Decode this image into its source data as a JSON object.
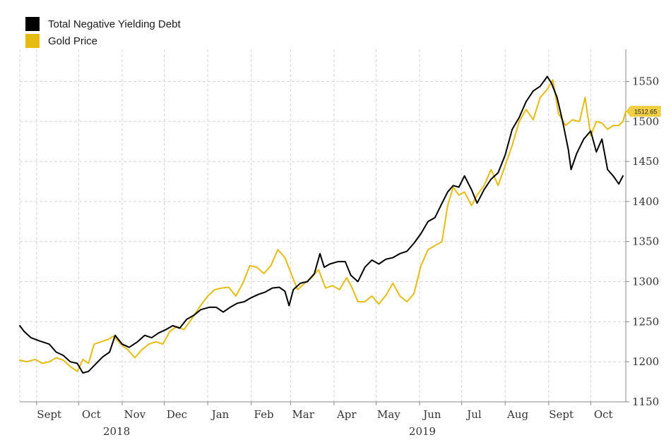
{
  "legend": [
    {
      "label": "Total Negative Yielding Debt",
      "color": "#000000"
    },
    {
      "label": "Gold Price",
      "color": "#e6bc13"
    }
  ],
  "last_price_tag": "1512.65",
  "chart_data": {
    "type": "line",
    "title": "",
    "xlabel": "",
    "ylabel": "",
    "ylim": [
      1150,
      1590
    ],
    "y_ticks": [
      1150,
      1200,
      1250,
      1300,
      1350,
      1400,
      1450,
      1500,
      1550
    ],
    "x_range": [
      "2018-08-20",
      "2019-10-26"
    ],
    "months": [
      {
        "label": "Sept",
        "date": "2018-09-10"
      },
      {
        "label": "Oct",
        "date": "2018-10-10"
      },
      {
        "label": "Nov",
        "date": "2018-11-10"
      },
      {
        "label": "Dec",
        "date": "2018-12-10"
      },
      {
        "label": "Jan",
        "date": "2019-01-10"
      },
      {
        "label": "Feb",
        "date": "2019-02-10"
      },
      {
        "label": "Mar",
        "date": "2019-03-10"
      },
      {
        "label": "Apr",
        "date": "2019-04-10"
      },
      {
        "label": "May",
        "date": "2019-05-10"
      },
      {
        "label": "Jun",
        "date": "2019-06-10"
      },
      {
        "label": "Jul",
        "date": "2019-07-10"
      },
      {
        "label": "Aug",
        "date": "2019-08-10"
      },
      {
        "label": "Sept",
        "date": "2019-09-10"
      },
      {
        "label": "Oct",
        "date": "2019-10-10"
      }
    ],
    "years": [
      {
        "label": "2018",
        "date": "2018-10-28"
      },
      {
        "label": "2019",
        "date": "2019-06-03"
      }
    ],
    "series": [
      {
        "name": "Total Negative Yielding Debt",
        "color": "#000000",
        "points": [
          [
            "2018-08-20",
            1245
          ],
          [
            "2018-08-23",
            1238
          ],
          [
            "2018-08-28",
            1230
          ],
          [
            "2018-09-03",
            1226
          ],
          [
            "2018-09-10",
            1222
          ],
          [
            "2018-09-15",
            1212
          ],
          [
            "2018-09-20",
            1208
          ],
          [
            "2018-09-25",
            1200
          ],
          [
            "2018-09-30",
            1198
          ],
          [
            "2018-10-04",
            1186
          ],
          [
            "2018-10-08",
            1188
          ],
          [
            "2018-10-13",
            1197
          ],
          [
            "2018-10-18",
            1206
          ],
          [
            "2018-10-23",
            1212
          ],
          [
            "2018-10-27",
            1233
          ],
          [
            "2018-11-01",
            1222
          ],
          [
            "2018-11-06",
            1218
          ],
          [
            "2018-11-12",
            1225
          ],
          [
            "2018-11-17",
            1233
          ],
          [
            "2018-11-22",
            1230
          ],
          [
            "2018-11-27",
            1236
          ],
          [
            "2018-12-02",
            1240
          ],
          [
            "2018-12-07",
            1245
          ],
          [
            "2018-12-12",
            1242
          ],
          [
            "2018-12-17",
            1253
          ],
          [
            "2018-12-22",
            1258
          ],
          [
            "2018-12-27",
            1265
          ],
          [
            "2019-01-02",
            1268
          ],
          [
            "2019-01-07",
            1268
          ],
          [
            "2019-01-12",
            1262
          ],
          [
            "2019-01-17",
            1268
          ],
          [
            "2019-01-22",
            1273
          ],
          [
            "2019-01-27",
            1275
          ],
          [
            "2019-02-01",
            1280
          ],
          [
            "2019-02-06",
            1284
          ],
          [
            "2019-02-11",
            1287
          ],
          [
            "2019-02-16",
            1292
          ],
          [
            "2019-02-21",
            1293
          ],
          [
            "2019-02-25",
            1288
          ],
          [
            "2019-02-28",
            1270
          ],
          [
            "2019-03-03",
            1290
          ],
          [
            "2019-03-08",
            1298
          ],
          [
            "2019-03-13",
            1300
          ],
          [
            "2019-03-18",
            1310
          ],
          [
            "2019-03-22",
            1335
          ],
          [
            "2019-03-25",
            1318
          ],
          [
            "2019-03-29",
            1322
          ],
          [
            "2019-04-04",
            1325
          ],
          [
            "2019-04-09",
            1325
          ],
          [
            "2019-04-13",
            1308
          ],
          [
            "2019-04-18",
            1300
          ],
          [
            "2019-04-23",
            1318
          ],
          [
            "2019-04-28",
            1327
          ],
          [
            "2019-05-03",
            1322
          ],
          [
            "2019-05-08",
            1328
          ],
          [
            "2019-05-13",
            1330
          ],
          [
            "2019-05-18",
            1335
          ],
          [
            "2019-05-23",
            1338
          ],
          [
            "2019-05-28",
            1348
          ],
          [
            "2019-06-02",
            1360
          ],
          [
            "2019-06-07",
            1375
          ],
          [
            "2019-06-12",
            1380
          ],
          [
            "2019-06-17",
            1398
          ],
          [
            "2019-06-21",
            1412
          ],
          [
            "2019-06-25",
            1420
          ],
          [
            "2019-06-29",
            1418
          ],
          [
            "2019-07-03",
            1432
          ],
          [
            "2019-07-08",
            1415
          ],
          [
            "2019-07-12",
            1398
          ],
          [
            "2019-07-17",
            1415
          ],
          [
            "2019-07-22",
            1428
          ],
          [
            "2019-07-27",
            1436
          ],
          [
            "2019-08-01",
            1458
          ],
          [
            "2019-08-06",
            1490
          ],
          [
            "2019-08-11",
            1505
          ],
          [
            "2019-08-16",
            1525
          ],
          [
            "2019-08-21",
            1538
          ],
          [
            "2019-08-26",
            1544
          ],
          [
            "2019-08-31",
            1556
          ],
          [
            "2019-09-03",
            1548
          ],
          [
            "2019-09-07",
            1530
          ],
          [
            "2019-09-11",
            1500
          ],
          [
            "2019-09-15",
            1465
          ],
          [
            "2019-09-17",
            1440
          ],
          [
            "2019-09-21",
            1460
          ],
          [
            "2019-09-26",
            1478
          ],
          [
            "2019-10-01",
            1488
          ],
          [
            "2019-10-05",
            1462
          ],
          [
            "2019-10-09",
            1478
          ],
          [
            "2019-10-13",
            1440
          ],
          [
            "2019-10-17",
            1432
          ],
          [
            "2019-10-21",
            1422
          ],
          [
            "2019-10-24",
            1432
          ]
        ]
      },
      {
        "name": "Gold Price",
        "color": "#e6bc13",
        "points": [
          [
            "2018-08-20",
            1202
          ],
          [
            "2018-08-25",
            1200
          ],
          [
            "2018-08-31",
            1203
          ],
          [
            "2018-09-05",
            1198
          ],
          [
            "2018-09-10",
            1200
          ],
          [
            "2018-09-15",
            1205
          ],
          [
            "2018-09-20",
            1202
          ],
          [
            "2018-09-25",
            1194
          ],
          [
            "2018-09-30",
            1188
          ],
          [
            "2018-10-04",
            1203
          ],
          [
            "2018-10-08",
            1198
          ],
          [
            "2018-10-12",
            1222
          ],
          [
            "2018-10-17",
            1225
          ],
          [
            "2018-10-22",
            1228
          ],
          [
            "2018-10-26",
            1232
          ],
          [
            "2018-10-31",
            1222
          ],
          [
            "2018-11-05",
            1215
          ],
          [
            "2018-11-10",
            1205
          ],
          [
            "2018-11-15",
            1215
          ],
          [
            "2018-11-20",
            1222
          ],
          [
            "2018-11-25",
            1225
          ],
          [
            "2018-11-30",
            1222
          ],
          [
            "2018-12-05",
            1238
          ],
          [
            "2018-12-10",
            1244
          ],
          [
            "2018-12-15",
            1240
          ],
          [
            "2018-12-20",
            1252
          ],
          [
            "2018-12-26",
            1268
          ],
          [
            "2019-01-01",
            1282
          ],
          [
            "2019-01-06",
            1290
          ],
          [
            "2019-01-11",
            1292
          ],
          [
            "2019-01-16",
            1293
          ],
          [
            "2019-01-21",
            1282
          ],
          [
            "2019-01-26",
            1298
          ],
          [
            "2019-01-31",
            1320
          ],
          [
            "2019-02-05",
            1318
          ],
          [
            "2019-02-10",
            1310
          ],
          [
            "2019-02-15",
            1320
          ],
          [
            "2019-02-20",
            1340
          ],
          [
            "2019-02-25",
            1330
          ],
          [
            "2019-03-01",
            1312
          ],
          [
            "2019-03-06",
            1290
          ],
          [
            "2019-03-11",
            1298
          ],
          [
            "2019-03-16",
            1305
          ],
          [
            "2019-03-21",
            1315
          ],
          [
            "2019-03-26",
            1292
          ],
          [
            "2019-03-31",
            1295
          ],
          [
            "2019-04-05",
            1290
          ],
          [
            "2019-04-10",
            1305
          ],
          [
            "2019-04-14",
            1292
          ],
          [
            "2019-04-18",
            1275
          ],
          [
            "2019-04-23",
            1275
          ],
          [
            "2019-04-28",
            1282
          ],
          [
            "2019-05-03",
            1272
          ],
          [
            "2019-05-08",
            1283
          ],
          [
            "2019-05-13",
            1298
          ],
          [
            "2019-05-18",
            1282
          ],
          [
            "2019-05-23",
            1275
          ],
          [
            "2019-05-28",
            1285
          ],
          [
            "2019-06-02",
            1320
          ],
          [
            "2019-06-07",
            1340
          ],
          [
            "2019-06-12",
            1345
          ],
          [
            "2019-06-17",
            1350
          ],
          [
            "2019-06-21",
            1395
          ],
          [
            "2019-06-25",
            1418
          ],
          [
            "2019-06-29",
            1408
          ],
          [
            "2019-07-03",
            1412
          ],
          [
            "2019-07-08",
            1395
          ],
          [
            "2019-07-12",
            1408
          ],
          [
            "2019-07-17",
            1420
          ],
          [
            "2019-07-22",
            1440
          ],
          [
            "2019-07-27",
            1420
          ],
          [
            "2019-08-01",
            1445
          ],
          [
            "2019-08-06",
            1470
          ],
          [
            "2019-08-11",
            1500
          ],
          [
            "2019-08-16",
            1515
          ],
          [
            "2019-08-21",
            1502
          ],
          [
            "2019-08-26",
            1530
          ],
          [
            "2019-08-31",
            1540
          ],
          [
            "2019-09-04",
            1552
          ],
          [
            "2019-09-08",
            1510
          ],
          [
            "2019-09-13",
            1495
          ],
          [
            "2019-09-18",
            1502
          ],
          [
            "2019-09-23",
            1500
          ],
          [
            "2019-09-27",
            1530
          ],
          [
            "2019-10-01",
            1482
          ],
          [
            "2019-10-05",
            1500
          ],
          [
            "2019-10-09",
            1498
          ],
          [
            "2019-10-13",
            1490
          ],
          [
            "2019-10-17",
            1495
          ],
          [
            "2019-10-21",
            1495
          ],
          [
            "2019-10-24",
            1500
          ],
          [
            "2019-10-26",
            1512.65
          ]
        ]
      }
    ],
    "legend_position": "top-left",
    "grid": true
  }
}
